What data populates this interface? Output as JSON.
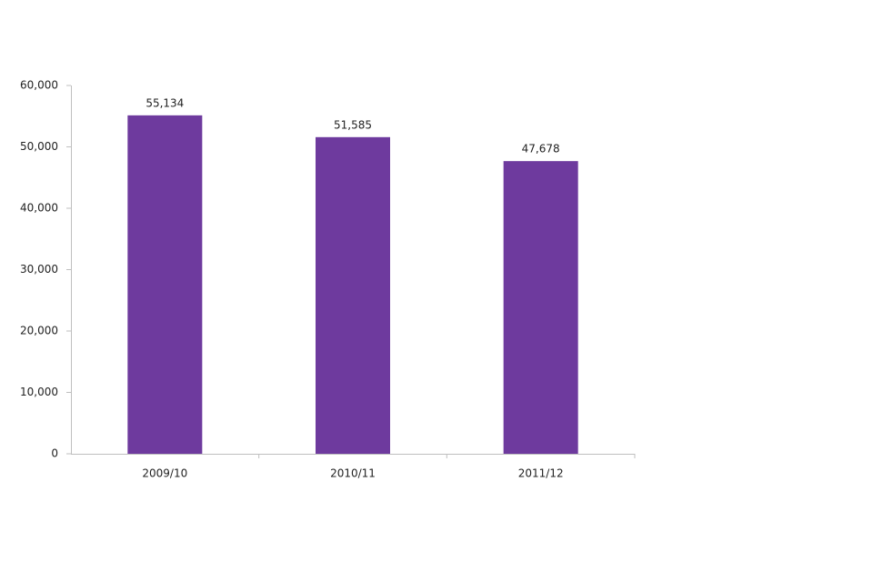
{
  "chart_data": {
    "type": "bar",
    "categories": [
      "2009/10",
      "2010/11",
      "2011/12"
    ],
    "values": [
      55134,
      51585,
      47678
    ],
    "value_labels": [
      "55,134",
      "51,585",
      "47,678"
    ],
    "color": "#6e3a9e",
    "ylim": [
      0,
      60000
    ],
    "yticks": [
      0,
      {
        "value": 10000,
        "label": "10,000"
      },
      {
        "value": 20000,
        "label": "20,000"
      },
      {
        "value": 30000,
        "label": "30,000"
      },
      {
        "value": 40000,
        "label": "40,000"
      },
      {
        "value": 50000,
        "label": "50,000"
      },
      {
        "value": 60000,
        "label": "60,000"
      }
    ],
    "grid": false
  }
}
